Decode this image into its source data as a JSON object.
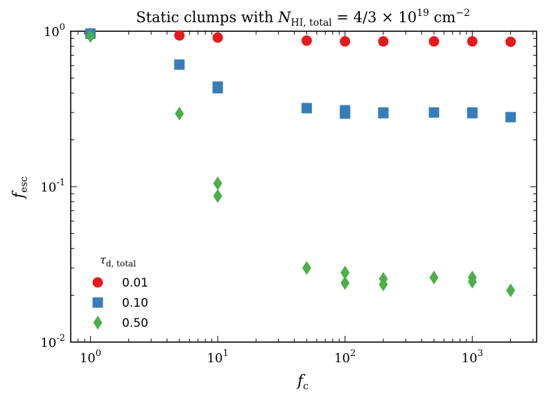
{
  "chart_data": {
    "type": "scatter",
    "title": "Static clumps with N_HI, total = 4/3 × 10^19 cm^-2",
    "title_parts": {
      "prefix": "Static clumps with ",
      "symbol": "N",
      "symbol_sub": "HI, total",
      "rhs": " = 4/3 × 10",
      "exp": "19",
      "unit": " cm",
      "unit_exp": "−2"
    },
    "xlabel": "f_c",
    "xlabel_parts": {
      "symbol": "f",
      "sub": "c"
    },
    "ylabel": "f_esc",
    "ylabel_parts": {
      "symbol": "f",
      "sub": "esc"
    },
    "x_scale": "log",
    "y_scale": "log",
    "xlim": [
      0.7,
      3200
    ],
    "ylim": [
      0.01,
      1.0
    ],
    "x_ticks": [
      {
        "value": 1,
        "base": "10",
        "exp": "0"
      },
      {
        "value": 10,
        "base": "10",
        "exp": "1"
      },
      {
        "value": 100,
        "base": "10",
        "exp": "2"
      },
      {
        "value": 1000,
        "base": "10",
        "exp": "3"
      }
    ],
    "y_ticks": [
      {
        "value": 0.01,
        "base": "10",
        "exp": "-2"
      },
      {
        "value": 0.1,
        "base": "10",
        "exp": "-1"
      },
      {
        "value": 1.0,
        "base": "10",
        "exp": "0"
      }
    ],
    "legend": {
      "title": "τ_d, total",
      "title_parts": {
        "symbol": "τ",
        "sub": "d, total"
      },
      "position": "lower-left"
    },
    "series": [
      {
        "name": "0.01",
        "marker": "circle",
        "color": "#e41a1c",
        "points": [
          [
            1,
            0.97
          ],
          [
            5,
            0.94
          ],
          [
            10,
            0.91
          ],
          [
            50,
            0.87
          ],
          [
            100,
            0.86
          ],
          [
            200,
            0.86
          ],
          [
            500,
            0.86
          ],
          [
            1000,
            0.86
          ],
          [
            2000,
            0.855
          ]
        ]
      },
      {
        "name": "0.10",
        "marker": "square",
        "color": "#377eb8",
        "points": [
          [
            1,
            0.965
          ],
          [
            5,
            0.61
          ],
          [
            10,
            0.44
          ],
          [
            10,
            0.43
          ],
          [
            50,
            0.32
          ],
          [
            100,
            0.31
          ],
          [
            100,
            0.295
          ],
          [
            200,
            0.3
          ],
          [
            200,
            0.297
          ],
          [
            500,
            0.3
          ],
          [
            1000,
            0.3
          ],
          [
            1000,
            0.297
          ],
          [
            2000,
            0.28
          ]
        ]
      },
      {
        "name": "0.50",
        "marker": "diamond",
        "color": "#4daf4a",
        "points": [
          [
            1,
            0.93
          ],
          [
            5,
            0.295
          ],
          [
            10,
            0.105
          ],
          [
            10,
            0.087
          ],
          [
            50,
            0.03
          ],
          [
            100,
            0.028
          ],
          [
            100,
            0.024
          ],
          [
            200,
            0.0255
          ],
          [
            200,
            0.0235
          ],
          [
            500,
            0.026
          ],
          [
            1000,
            0.026
          ],
          [
            1000,
            0.0245
          ],
          [
            2000,
            0.0215
          ]
        ]
      }
    ]
  }
}
